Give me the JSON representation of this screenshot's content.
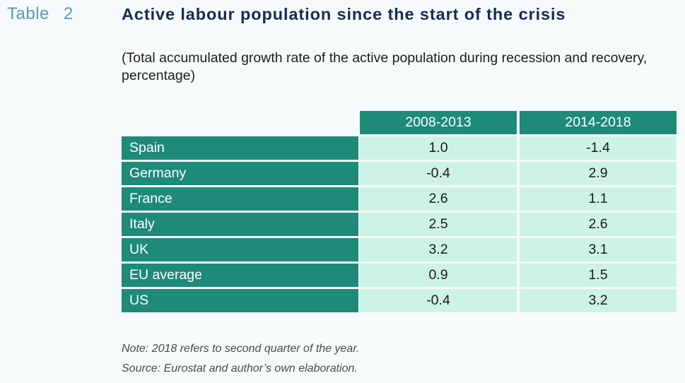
{
  "table_label": {
    "word": "Table",
    "number": "2"
  },
  "title": "Active labour population since the start of the crisis",
  "subtitle": "(Total accumulated growth rate of the active population during recession and recovery, percentage)",
  "columns": [
    "2008-2013",
    "2014-2018"
  ],
  "rows": [
    {
      "label": "Spain",
      "values": [
        "1.0",
        "-1.4"
      ]
    },
    {
      "label": "Germany",
      "values": [
        "-0.4",
        "2.9"
      ]
    },
    {
      "label": "France",
      "values": [
        "2.6",
        "1.1"
      ]
    },
    {
      "label": "Italy",
      "values": [
        "2.5",
        "2.6"
      ]
    },
    {
      "label": "UK",
      "values": [
        "3.2",
        "3.1"
      ]
    },
    {
      "label": "EU average",
      "values": [
        "0.9",
        "1.5"
      ]
    },
    {
      "label": "US",
      "values": [
        "-0.4",
        "3.2"
      ]
    }
  ],
  "note": "Note: 2018 refers to second quarter of the year.",
  "source": "Source: Eurostat and author’s own elaboration.",
  "colors": {
    "header_bg": "#1e8a78",
    "cell_bg": "#cdf3e6",
    "title": "#172a57",
    "table_label": "#5b9bb5"
  }
}
